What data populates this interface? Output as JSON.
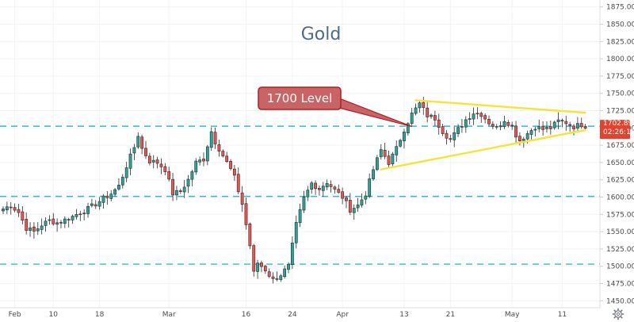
{
  "chart_data": {
    "type": "candlestick",
    "title": "Gold",
    "ylim": [
      1440,
      1885
    ],
    "y_ticks": [
      1450,
      1475,
      1500,
      1525,
      1550,
      1575,
      1600,
      1625,
      1650,
      1675,
      1700,
      1725,
      1750,
      1775,
      1800,
      1825,
      1850,
      1875
    ],
    "y_tick_labels": [
      "1450.00",
      "1475.00",
      "1500.00",
      "1525.00",
      "1550.00",
      "1575.00",
      "1600.00",
      "1625.00",
      "1650.00",
      "1675.00",
      "1700.00",
      "1725.00",
      "1750.00",
      "1775.00",
      "1800.00",
      "1825.00",
      "1850.00",
      "1875.00"
    ],
    "x_tick_labels": [
      "Feb",
      "10",
      "18",
      "Mar",
      "16",
      "24",
      "Apr",
      "13",
      "21",
      "May",
      "11"
    ],
    "horizontal_levels": [
      1702.5,
      1601,
      1503
    ],
    "close_anchors": [
      [
        0,
        1583
      ],
      [
        2,
        1588
      ],
      [
        4,
        1578
      ],
      [
        6,
        1555
      ],
      [
        8,
        1550
      ],
      [
        10,
        1560
      ],
      [
        12,
        1566
      ],
      [
        14,
        1563
      ],
      [
        16,
        1567
      ],
      [
        18,
        1572
      ],
      [
        20,
        1578
      ],
      [
        22,
        1583
      ],
      [
        24,
        1590
      ],
      [
        26,
        1598
      ],
      [
        28,
        1605
      ],
      [
        30,
        1616
      ],
      [
        32,
        1645
      ],
      [
        34,
        1672
      ],
      [
        35,
        1690
      ],
      [
        36,
        1670
      ],
      [
        38,
        1652
      ],
      [
        40,
        1650
      ],
      [
        42,
        1640
      ],
      [
        44,
        1605
      ],
      [
        46,
        1608
      ],
      [
        48,
        1625
      ],
      [
        50,
        1650
      ],
      [
        52,
        1655
      ],
      [
        53,
        1675
      ],
      [
        54,
        1695
      ],
      [
        55,
        1680
      ],
      [
        57,
        1660
      ],
      [
        59,
        1640
      ],
      [
        60,
        1628
      ],
      [
        62,
        1590
      ],
      [
        64,
        1530
      ],
      [
        65,
        1490
      ],
      [
        66,
        1505
      ],
      [
        68,
        1495
      ],
      [
        70,
        1480
      ],
      [
        72,
        1488
      ],
      [
        74,
        1500
      ],
      [
        76,
        1560
      ],
      [
        78,
        1598
      ],
      [
        80,
        1620
      ],
      [
        82,
        1612
      ],
      [
        84,
        1622
      ],
      [
        86,
        1610
      ],
      [
        88,
        1600
      ],
      [
        90,
        1582
      ],
      [
        92,
        1588
      ],
      [
        94,
        1605
      ],
      [
        96,
        1640
      ],
      [
        98,
        1668
      ],
      [
        100,
        1650
      ],
      [
        102,
        1670
      ],
      [
        104,
        1698
      ],
      [
        106,
        1720
      ],
      [
        108,
        1735
      ],
      [
        110,
        1718
      ],
      [
        112,
        1714
      ],
      [
        114,
        1695
      ],
      [
        116,
        1683
      ],
      [
        118,
        1698
      ],
      [
        120,
        1712
      ],
      [
        122,
        1722
      ],
      [
        124,
        1720
      ],
      [
        126,
        1708
      ],
      [
        128,
        1700
      ],
      [
        130,
        1712
      ],
      [
        132,
        1703
      ],
      [
        133,
        1690
      ],
      [
        134,
        1682
      ],
      [
        136,
        1692
      ],
      [
        138,
        1702
      ],
      [
        140,
        1698
      ],
      [
        142,
        1700
      ],
      [
        144,
        1710
      ],
      [
        146,
        1708
      ],
      [
        148,
        1702
      ],
      [
        150,
        1705
      ],
      [
        151,
        1703
      ]
    ],
    "candle_count": 152,
    "trendlines": {
      "upper": {
        "from": [
          107,
          1740
        ],
        "to": [
          151,
          1722
        ]
      },
      "lower": {
        "from": [
          98,
          1640
        ],
        "to": [
          151,
          1697
        ]
      }
    },
    "annotation": {
      "text": "1700 Level",
      "points_to": [
        106,
        1702
      ]
    },
    "last_price": {
      "value_label": "1702.89",
      "countdown_label": "02:26:16"
    },
    "colors": {
      "up": "#26a69a",
      "down": "#ef5350",
      "candle_stroke": "#2a2a2a",
      "level_line": "#35b6d6",
      "trendline": "#f5e23a",
      "callout_fill": "#c86466",
      "callout_stroke": "#b01e23",
      "price_tag": "#e0432e",
      "grid": "#f0f3f6"
    }
  },
  "toolbar": {
    "settings_icon": "gear-icon"
  }
}
